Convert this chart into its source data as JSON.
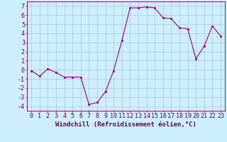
{
  "x": [
    0,
    1,
    2,
    3,
    4,
    5,
    6,
    7,
    8,
    9,
    10,
    11,
    12,
    13,
    14,
    15,
    16,
    17,
    18,
    19,
    20,
    21,
    22,
    23
  ],
  "y": [
    -0.1,
    -0.7,
    0.1,
    -0.3,
    -0.8,
    -0.8,
    -0.8,
    -3.8,
    -3.6,
    -2.4,
    -0.1,
    3.2,
    6.8,
    6.8,
    6.9,
    6.8,
    5.7,
    5.6,
    4.6,
    4.5,
    1.2,
    2.6,
    4.8,
    3.7
  ],
  "line_color": "#990099",
  "marker_color": "#990099",
  "bg_color": "#cceeff",
  "grid_color": "#aacccc",
  "xlabel": "Windchill (Refroidissement éolien,°C)",
  "ylim": [
    -4.5,
    7.5
  ],
  "xlim": [
    -0.5,
    23.5
  ],
  "yticks": [
    -4,
    -3,
    -2,
    -1,
    0,
    1,
    2,
    3,
    4,
    5,
    6,
    7
  ],
  "xticks": [
    0,
    1,
    2,
    3,
    4,
    5,
    6,
    7,
    8,
    9,
    10,
    11,
    12,
    13,
    14,
    15,
    16,
    17,
    18,
    19,
    20,
    21,
    22,
    23
  ],
  "font_color": "#660066",
  "label_fontsize": 6.5,
  "tick_fontsize": 6
}
